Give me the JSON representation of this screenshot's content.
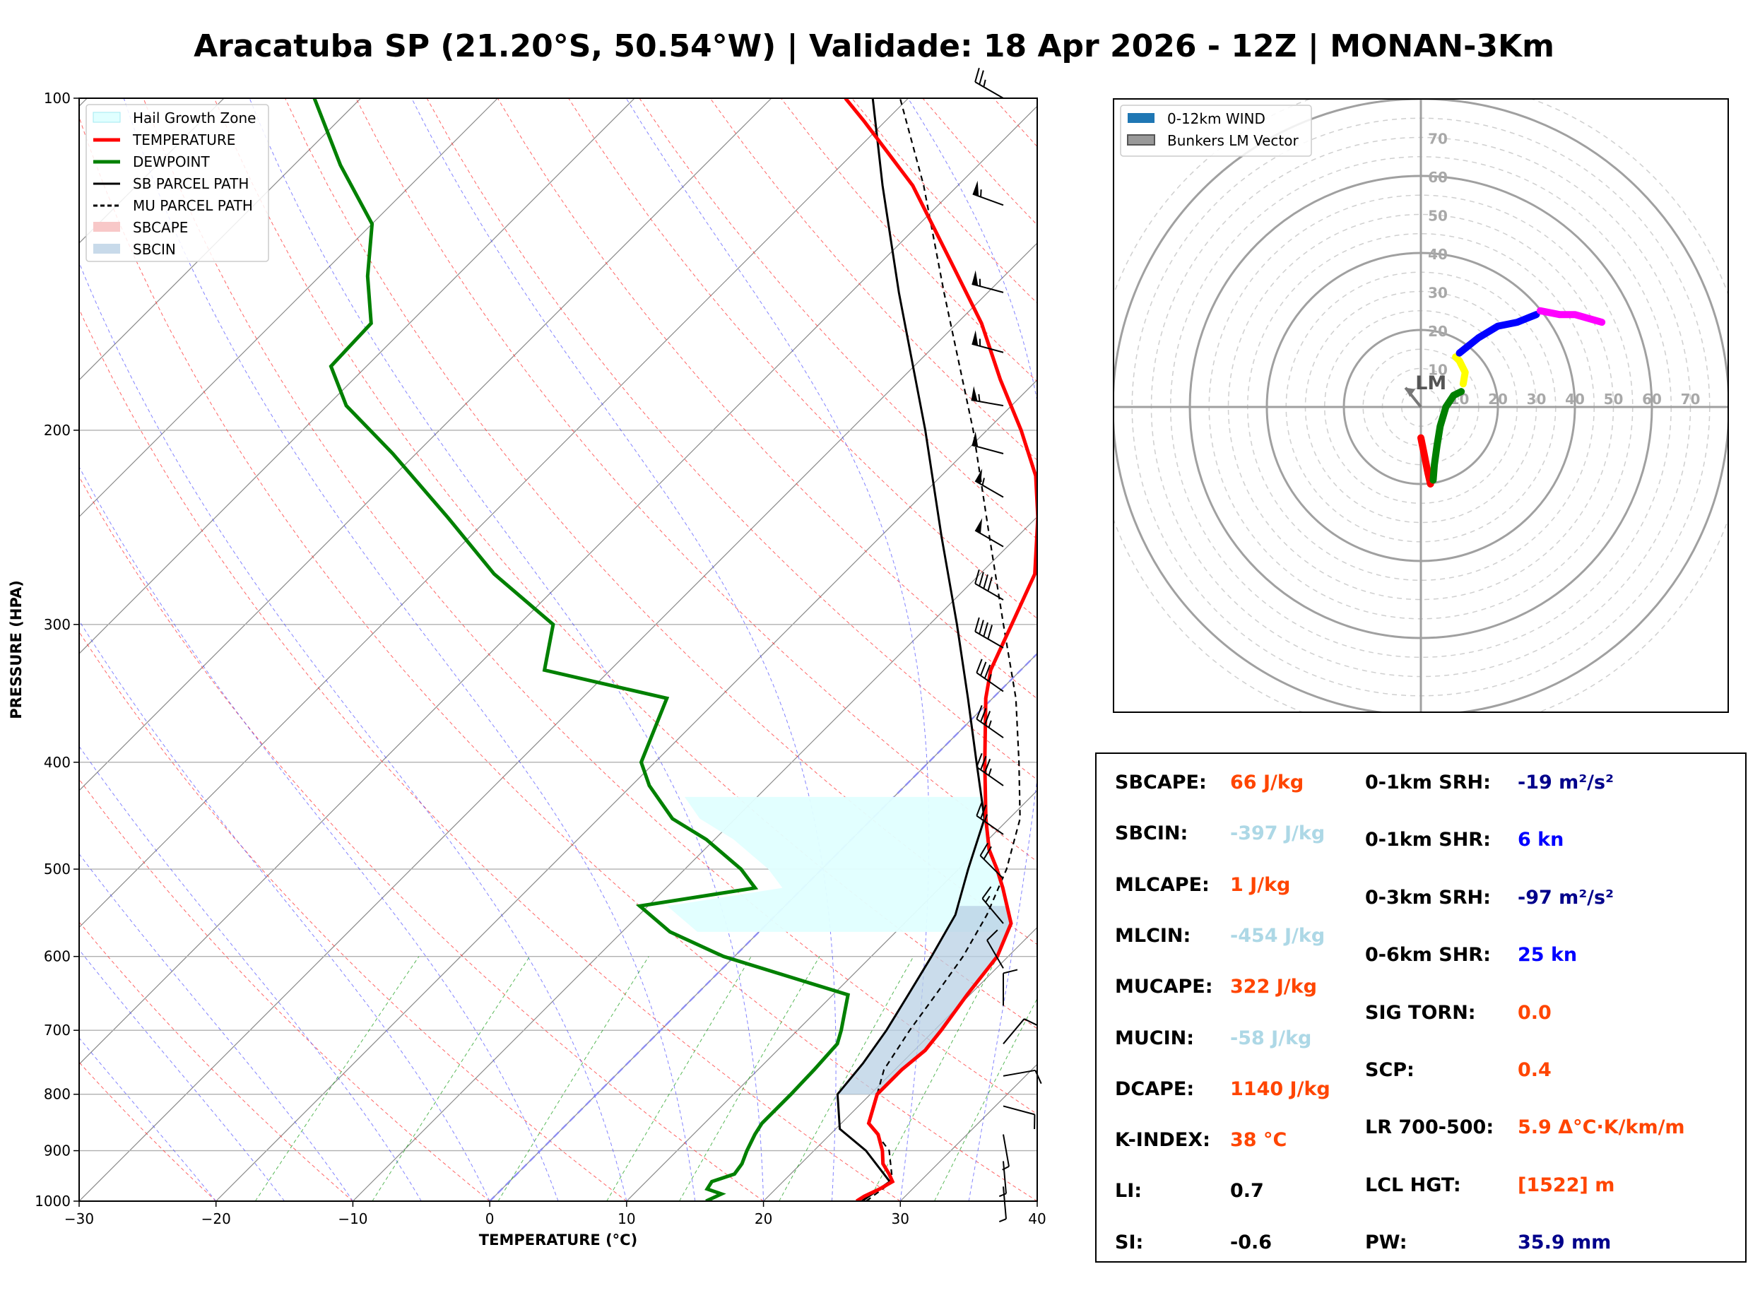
{
  "title": "Aracatuba SP (21.20°S, 50.54°W) | Validade: 18 Apr 2026 - 12Z | MONAN-3Km",
  "chart_data": [
    {
      "type": "line",
      "name": "skew-t",
      "xlabel": "TEMPERATURE (°C)",
      "ylabel": "PRESSURE (HPA)",
      "xlim": [
        -30,
        40
      ],
      "ylim": [
        1000,
        100
      ],
      "x_ticks": [
        "−30",
        "−20",
        "−10",
        "0",
        "10",
        "20",
        "30",
        "40"
      ],
      "y_ticks": [
        "100",
        "200",
        "300",
        "400",
        "500",
        "600",
        "700",
        "800",
        "900",
        "1000"
      ],
      "legend": [
        {
          "label": "Hail Growth Zone",
          "color": "#e0ffff"
        },
        {
          "label": "TEMPERATURE",
          "color": "#ff0000"
        },
        {
          "label": "DEWPOINT",
          "color": "#008000"
        },
        {
          "label": "SB PARCEL PATH",
          "color": "#000000"
        },
        {
          "label": "MU PARCEL PATH",
          "color": "#000000"
        },
        {
          "label": "SBCAPE",
          "color": "#f8c8c8"
        },
        {
          "label": "SBCIN",
          "color": "#c8daea"
        }
      ],
      "series": [
        {
          "name": "TEMPERATURE",
          "points": [
            [
              1000,
              26.8
            ],
            [
              990,
              27.0
            ],
            [
              975,
              27.6
            ],
            [
              960,
              28.0
            ],
            [
              945,
              27.2
            ],
            [
              925,
              26.0
            ],
            [
              900,
              25.0
            ],
            [
              870,
              23.5
            ],
            [
              850,
              22.0
            ],
            [
              800,
              20.5
            ],
            [
              760,
              20.5
            ],
            [
              730,
              20.8
            ],
            [
              700,
              20.5
            ],
            [
              650,
              19.8
            ],
            [
              600,
              19.2
            ],
            [
              560,
              17.8
            ],
            [
              520,
              14.6
            ],
            [
              500,
              12.8
            ],
            [
              480,
              10.8
            ],
            [
              450,
              8.3
            ],
            [
              400,
              4.1
            ],
            [
              350,
              -0.5
            ],
            [
              330,
              -2.2
            ],
            [
              300,
              -4.0
            ],
            [
              270,
              -6.0
            ],
            [
              240,
              -9.9
            ],
            [
              220,
              -13.1
            ],
            [
              200,
              -17.5
            ],
            [
              180,
              -22.7
            ],
            [
              160,
              -28.2
            ],
            [
              140,
              -35.2
            ],
            [
              120,
              -43.3
            ],
            [
              105,
              -51.5
            ],
            [
              100,
              -54.6
            ]
          ]
        },
        {
          "name": "DEWPOINT",
          "points": [
            [
              1000,
              15.8
            ],
            [
              985,
              16.4
            ],
            [
              975,
              15.0
            ],
            [
              960,
              14.8
            ],
            [
              945,
              15.9
            ],
            [
              925,
              15.7
            ],
            [
              900,
              15.1
            ],
            [
              870,
              14.5
            ],
            [
              850,
              14.2
            ],
            [
              800,
              14.2
            ],
            [
              760,
              14.1
            ],
            [
              720,
              13.9
            ],
            [
              700,
              13.2
            ],
            [
              650,
              11.1
            ],
            [
              600,
              -0.8
            ],
            [
              570,
              -6.5
            ],
            [
              540,
              -10.6
            ],
            [
              520,
              -3.5
            ],
            [
              500,
              -5.9
            ],
            [
              470,
              -10.6
            ],
            [
              450,
              -14.6
            ],
            [
              420,
              -18.7
            ],
            [
              400,
              -21.0
            ],
            [
              350,
              -23.8
            ],
            [
              330,
              -34.8
            ],
            [
              300,
              -37.5
            ],
            [
              270,
              -45.5
            ],
            [
              240,
              -53.0
            ],
            [
              210,
              -61.7
            ],
            [
              190,
              -68.6
            ],
            [
              175,
              -72.6
            ],
            [
              160,
              -72.8
            ],
            [
              145,
              -76.5
            ],
            [
              130,
              -80.0
            ],
            [
              115,
              -86.6
            ],
            [
              100,
              -93.4
            ]
          ]
        },
        {
          "name": "SB PARCEL PATH",
          "points": [
            [
              1000,
              27.2
            ],
            [
              960,
              27.8
            ],
            [
              900,
              23.8
            ],
            [
              860,
              20.3
            ],
            [
              800,
              17.6
            ],
            [
              750,
              17.2
            ],
            [
              700,
              16.5
            ],
            [
              650,
              15.5
            ],
            [
              600,
              14.4
            ],
            [
              550,
              13.1
            ],
            [
              500,
              10.7
            ],
            [
              450,
              8.2
            ],
            [
              400,
              3.5
            ],
            [
              350,
              -1.8
            ],
            [
              300,
              -8.0
            ],
            [
              250,
              -15.5
            ],
            [
              200,
              -24.5
            ],
            [
              150,
              -36.5
            ],
            [
              120,
              -45.5
            ],
            [
              100,
              -52.6
            ]
          ]
        },
        {
          "name": "MU PARCEL PATH",
          "points": [
            [
              1000,
              27.5
            ],
            [
              960,
              28.0
            ],
            [
              900,
              25.5
            ],
            [
              850,
              22.0
            ],
            [
              800,
              20.5
            ],
            [
              760,
              19.2
            ],
            [
              700,
              18.2
            ],
            [
              650,
              17.5
            ],
            [
              600,
              16.7
            ],
            [
              550,
              15.4
            ],
            [
              500,
              13.5
            ],
            [
              450,
              10.8
            ],
            [
              400,
              6.6
            ],
            [
              350,
              1.7
            ],
            [
              300,
              -4.6
            ],
            [
              250,
              -12.0
            ],
            [
              200,
              -21.0
            ],
            [
              150,
              -33.2
            ],
            [
              120,
              -42.5
            ],
            [
              100,
              -50.6
            ]
          ]
        }
      ],
      "hail_growth_zone_hpa": [
        430,
        570
      ]
    },
    {
      "type": "scatter",
      "name": "hodograph",
      "radial_ticks": [
        "10",
        "20",
        "30",
        "40",
        "50",
        "60",
        "70"
      ],
      "legend": [
        {
          "label": "0-12km WIND",
          "color": "#1f77b4"
        },
        {
          "label": "Bunkers LM Vector",
          "color": "#999999"
        }
      ],
      "lm_label": "LM",
      "lm_vector": [
        -4,
        5
      ],
      "segments": [
        {
          "color": "#ff0000",
          "points": [
            [
              0,
              -8
            ],
            [
              0.8,
              -12
            ],
            [
              1.8,
              -17
            ],
            [
              2.5,
              -20
            ]
          ]
        },
        {
          "color": "#008000",
          "points": [
            [
              3.2,
              -19
            ],
            [
              3.5,
              -15
            ],
            [
              4.2,
              -10
            ],
            [
              5.0,
              -5
            ],
            [
              6.5,
              0
            ],
            [
              8.5,
              3
            ],
            [
              10.5,
              4
            ]
          ]
        },
        {
          "color": "#ffff00",
          "points": [
            [
              11.0,
              6
            ],
            [
              11.5,
              9
            ],
            [
              10.0,
              12
            ],
            [
              9.0,
              13
            ]
          ]
        },
        {
          "color": "#0000ff",
          "points": [
            [
              10.0,
              14
            ],
            [
              15.0,
              18
            ],
            [
              20.0,
              21
            ],
            [
              25.0,
              22
            ],
            [
              30.0,
              24
            ]
          ]
        },
        {
          "color": "#ff00ff",
          "points": [
            [
              31.0,
              25
            ],
            [
              36.0,
              24
            ],
            [
              40.0,
              24
            ],
            [
              47.0,
              22
            ]
          ]
        }
      ]
    }
  ],
  "barbs": [
    {
      "p": 100,
      "speed": 25,
      "dir": 300
    },
    {
      "p": 125,
      "speed": 55,
      "dir": 290
    },
    {
      "p": 150,
      "speed": 55,
      "dir": 285
    },
    {
      "p": 170,
      "speed": 55,
      "dir": 285
    },
    {
      "p": 190,
      "speed": 55,
      "dir": 280
    },
    {
      "p": 210,
      "speed": 50,
      "dir": 285
    },
    {
      "p": 230,
      "speed": 55,
      "dir": 300
    },
    {
      "p": 255,
      "speed": 50,
      "dir": 300
    },
    {
      "p": 285,
      "speed": 40,
      "dir": 300
    },
    {
      "p": 315,
      "speed": 40,
      "dir": 300
    },
    {
      "p": 345,
      "speed": 35,
      "dir": 305
    },
    {
      "p": 380,
      "speed": 35,
      "dir": 305
    },
    {
      "p": 420,
      "speed": 35,
      "dir": 305
    },
    {
      "p": 465,
      "speed": 25,
      "dir": 305
    },
    {
      "p": 510,
      "speed": 20,
      "dir": 315
    },
    {
      "p": 560,
      "speed": 15,
      "dir": 320
    },
    {
      "p": 615,
      "speed": 10,
      "dir": 330
    },
    {
      "p": 665,
      "speed": 10,
      "dir": 0
    },
    {
      "p": 720,
      "speed": 10,
      "dir": 40
    },
    {
      "p": 770,
      "speed": 10,
      "dir": 80
    },
    {
      "p": 820,
      "speed": 10,
      "dir": 105
    },
    {
      "p": 870,
      "speed": 5,
      "dir": 170
    },
    {
      "p": 920,
      "speed": 5,
      "dir": 175
    },
    {
      "p": 970,
      "speed": 5,
      "dir": 175
    }
  ],
  "params": {
    "left": [
      {
        "label": "SBCAPE:",
        "value": "66 J/kg",
        "color": "#ff4500"
      },
      {
        "label": "SBCIN:",
        "value": "-397 J/kg",
        "color": "#add8e6"
      },
      {
        "label": "MLCAPE:",
        "value": "1 J/kg",
        "color": "#ff4500"
      },
      {
        "label": "MLCIN:",
        "value": "-454 J/kg",
        "color": "#add8e6"
      },
      {
        "label": "MUCAPE:",
        "value": "322 J/kg",
        "color": "#ff4500"
      },
      {
        "label": "MUCIN:",
        "value": "-58 J/kg",
        "color": "#add8e6"
      },
      {
        "label": "DCAPE:",
        "value": "1140 J/kg",
        "color": "#ff4500"
      },
      {
        "label": "K-INDEX:",
        "value": "38 °C",
        "color": "#ff4500"
      },
      {
        "label": "LI:",
        "value": "0.7",
        "color": "#000000"
      },
      {
        "label": "SI:",
        "value": "-0.6",
        "color": "#000000"
      }
    ],
    "right": [
      {
        "label": "0-1km SRH:",
        "value": "-19 m²/s²",
        "color": "#00008b"
      },
      {
        "label": "0-1km SHR:",
        "value": "6 kn",
        "color": "#0000ff"
      },
      {
        "label": "0-3km SRH:",
        "value": "-97 m²/s²",
        "color": "#00008b"
      },
      {
        "label": "0-6km SHR:",
        "value": "25 kn",
        "color": "#0000ff"
      },
      {
        "label": "SIG TORN:",
        "value": "0.0",
        "color": "#ff4500"
      },
      {
        "label": "SCP:",
        "value": "0.4",
        "color": "#ff4500"
      },
      {
        "label": "LR 700-500:",
        "value": "5.9 Δ°C·K/km/m",
        "color": "#ff4500"
      },
      {
        "label": "LCL HGT:",
        "value": "[1522] m",
        "color": "#ff4500"
      },
      {
        "label": "PW:",
        "value": "35.9 mm",
        "color": "#00008b"
      }
    ]
  }
}
